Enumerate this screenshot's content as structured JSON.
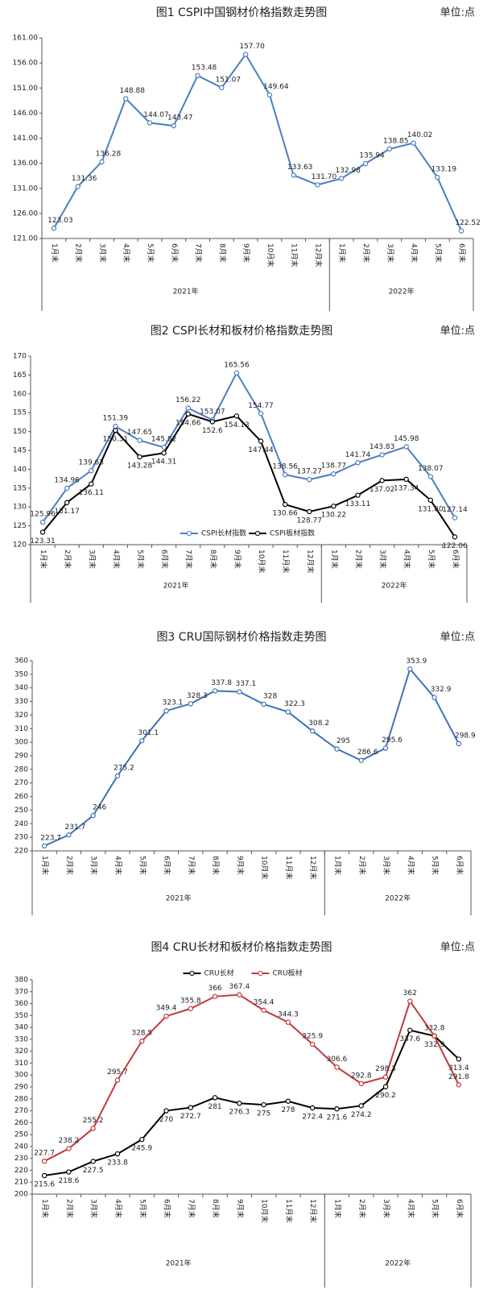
{
  "chart_data": [
    {
      "type": "line",
      "title": "图1 CSPI中国钢材价格指数走势图",
      "unit": "单位:点",
      "categories": [
        "1月末",
        "2月末",
        "3月末",
        "4月末",
        "5月末",
        "6月末",
        "7月末",
        "8月末",
        "9月末",
        "10月末",
        "11月末",
        "12月末",
        "1月末",
        "2月末",
        "3月末",
        "4月末",
        "5月末",
        "6月末"
      ],
      "groups": [
        "2021年",
        "2022年"
      ],
      "values": [
        123.03,
        131.36,
        136.28,
        148.88,
        144.07,
        143.47,
        153.48,
        151.07,
        157.7,
        149.64,
        133.63,
        131.7,
        132.98,
        135.94,
        138.85,
        140.02,
        133.19,
        122.52
      ],
      "value_labels": [
        "123.03",
        "131.36",
        "136.28",
        "148.88",
        "144.07",
        "143.47",
        "153.48",
        "151.07",
        "157.70",
        "149.64",
        "133.63",
        "131.70",
        "132.98",
        "135.94",
        "138.85",
        "140.02",
        "133.19",
        "122.52"
      ],
      "color": "#4a7ebf",
      "ylim": [
        121,
        161
      ],
      "yticks": [
        {
          "value": 121,
          "label": "121.00"
        },
        {
          "value": 126,
          "label": "126.00"
        },
        {
          "value": 131,
          "label": "131.00"
        },
        {
          "value": 136,
          "label": "136.00"
        },
        {
          "value": 141,
          "label": "141.00"
        },
        {
          "value": 146,
          "label": "146.00"
        },
        {
          "value": 151,
          "label": "151.00"
        },
        {
          "value": 156,
          "label": "156.00"
        },
        {
          "value": 161,
          "label": "161.00"
        }
      ],
      "grid": false
    },
    {
      "type": "line",
      "title": "图2 CSPI长材和板材价格指数走势图",
      "unit": "单位:点",
      "categories": [
        "1月末",
        "2月末",
        "3月末",
        "4月末",
        "5月末",
        "6月末",
        "7月末",
        "8月末",
        "9月末",
        "10月末",
        "11月末",
        "12月末",
        "1月末",
        "2月末",
        "3月末",
        "4月末",
        "5月末",
        "6月末"
      ],
      "groups": [
        "2021年",
        "2022年"
      ],
      "series": [
        {
          "name": "CSPI长材指数",
          "color": "#4a7ebf",
          "values": [
            125.96,
            134.96,
            139.63,
            151.39,
            147.65,
            145.82,
            156.22,
            153.07,
            165.56,
            154.77,
            138.56,
            137.27,
            138.77,
            141.74,
            143.83,
            145.98,
            138.07,
            127.14
          ],
          "value_labels": [
            "125.96",
            "134.96",
            "139.63",
            "151.39",
            "147.65",
            "145.82",
            "156.22",
            "153.07",
            "165.56",
            "154.77",
            "138.56",
            "137.27",
            "138.77",
            "141.74",
            "143.83",
            "145.98",
            "138.07",
            "127.14"
          ]
        },
        {
          "name": "CSPI板材指数",
          "color": "#000000",
          "values": [
            123.31,
            131.17,
            136.11,
            150.31,
            143.28,
            144.31,
            154.66,
            152.6,
            154.13,
            147.44,
            130.66,
            128.77,
            130.22,
            133.11,
            137.02,
            137.34,
            131.8,
            122.06
          ],
          "value_labels": [
            "123.31",
            "131.17",
            "136.11",
            "150.31",
            "143.28",
            "144.31",
            "154.66",
            "152.6",
            "154.13",
            "147.44",
            "130.66",
            "128.77",
            "130.22",
            "133.11",
            "137.02",
            "137.34",
            "131.80",
            "122.06"
          ]
        }
      ],
      "ylim": [
        120,
        170
      ],
      "yticks": [
        120,
        125,
        130,
        135,
        140,
        145,
        150,
        155,
        160,
        165,
        170
      ],
      "grid": false,
      "legend": "bottom"
    },
    {
      "type": "line",
      "title": "图3 CRU国际钢材价格指数走势图",
      "unit": "单位:点",
      "categories": [
        "1月末",
        "2月末",
        "3月末",
        "4月末",
        "5月末",
        "6月末",
        "7月末",
        "8月末",
        "9月末",
        "10月末",
        "11月末",
        "12月末",
        "1月末",
        "2月末",
        "3月末",
        "4月末",
        "5月末",
        "6月末"
      ],
      "groups": [
        "2021年",
        "2022年"
      ],
      "values": [
        223.7,
        231.7,
        246,
        275.2,
        301.1,
        323.1,
        328.3,
        337.8,
        337.1,
        328,
        322.3,
        308.2,
        295,
        286.6,
        295.6,
        353.9,
        332.9,
        298.9
      ],
      "color": "#3f72b8",
      "ylim": [
        220,
        360
      ],
      "yticks": [
        220,
        230,
        240,
        250,
        260,
        270,
        280,
        290,
        300,
        310,
        320,
        330,
        340,
        350,
        360
      ],
      "grid": false
    },
    {
      "type": "line",
      "title": "图4 CRU长材和板材价格指数走势图",
      "unit": "单位:点",
      "categories": [
        "1月末",
        "2月末",
        "3月末",
        "4月末",
        "5月末",
        "6月末",
        "7月末",
        "8月末",
        "9月末",
        "10月末",
        "11月末",
        "12月末",
        "1月末",
        "2月末",
        "3月末",
        "4月末",
        "5月末",
        "6月末"
      ],
      "groups": [
        "2021年",
        "2022年"
      ],
      "series": [
        {
          "name": "CRU长材",
          "color": "#000000",
          "values": [
            215.6,
            218.6,
            227.5,
            233.8,
            245.9,
            270,
            272.7,
            281,
            276.3,
            275,
            278,
            272.4,
            271.6,
            274.2,
            290.2,
            337.6,
            332.9,
            313.4
          ]
        },
        {
          "name": "CRU板材",
          "color": "#c0393b",
          "values": [
            227.7,
            238.2,
            255.2,
            295.7,
            328.5,
            349.4,
            355.8,
            366,
            367.4,
            354.4,
            344.3,
            325.9,
            306.6,
            292.8,
            298.3,
            362,
            332.8,
            291.8
          ]
        }
      ],
      "ylim": [
        200,
        380
      ],
      "yticks": [
        200,
        210,
        220,
        230,
        240,
        250,
        260,
        270,
        280,
        290,
        300,
        310,
        320,
        330,
        340,
        350,
        360,
        370,
        380
      ],
      "grid": false,
      "legend": "top"
    }
  ]
}
